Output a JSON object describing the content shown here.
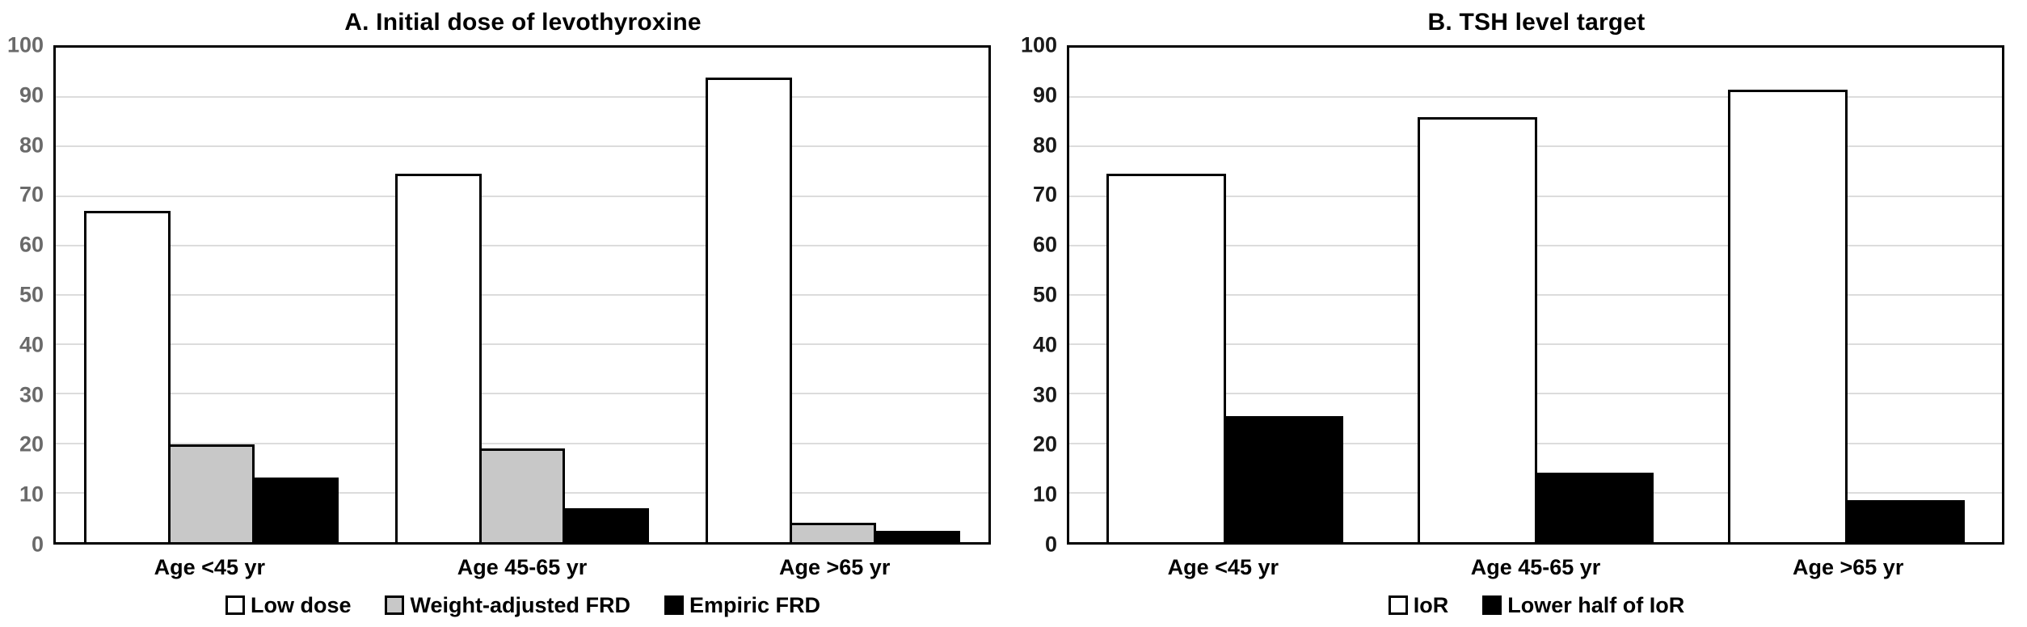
{
  "figure": {
    "background_color": "#ffffff",
    "plot_border_color": "#000000",
    "gridline_color": "#dcdcdc"
  },
  "chart_data": [
    {
      "type": "bar",
      "panel": "A",
      "title": "A. Initial dose of levothyroxine",
      "categories": [
        "Age <45 yr",
        "Age 45-65 yr",
        "Age >65 yr"
      ],
      "series": [
        {
          "name": "Low dose",
          "color": "#ffffff",
          "values": [
            67,
            74.5,
            94
          ]
        },
        {
          "name": "Weight-adjusted FRD",
          "color": "#c8c8c8",
          "values": [
            19.7,
            19,
            4
          ]
        },
        {
          "name": "Empiric FRD",
          "color": "#000000",
          "values": [
            13,
            6.8,
            2.3
          ]
        }
      ],
      "xlabel": "",
      "ylabel": "",
      "ylim": [
        0,
        100
      ],
      "ytick_step": 10,
      "grid": true,
      "legend_position": "bottom",
      "axis_label_color": "#6a6a6a",
      "bar_gap_ratio": 0.6
    },
    {
      "type": "bar",
      "panel": "B",
      "title": "B. TSH level target",
      "categories": [
        "Age <45 yr",
        "Age 45-65 yr",
        "Age >65 yr"
      ],
      "series": [
        {
          "name": "IoR",
          "color": "#ffffff",
          "values": [
            74.5,
            86,
            91.5
          ]
        },
        {
          "name": "Lower half of IoR",
          "color": "#000000",
          "values": [
            25.5,
            14,
            8.5
          ]
        }
      ],
      "xlabel": "",
      "ylabel": "",
      "ylim": [
        0,
        100
      ],
      "ytick_step": 10,
      "grid": true,
      "legend_position": "bottom",
      "axis_label_color": "#1a1a1a",
      "bar_gap_ratio": 0.6
    }
  ]
}
